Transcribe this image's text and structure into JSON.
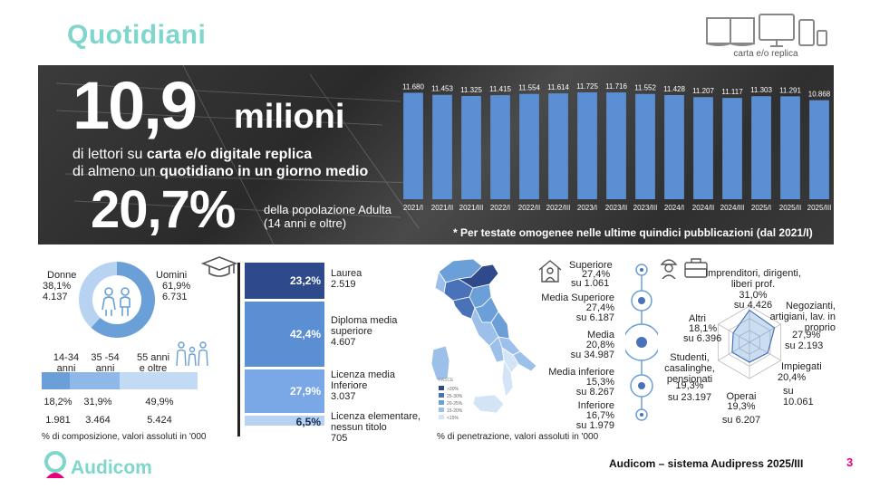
{
  "title": "Quotidiani",
  "devices_label": "carta e/o replica",
  "headline": {
    "number": "10,9",
    "unit": "milioni",
    "line1_a": "di lettori su ",
    "line1_b": "carta e/o digitale replica",
    "line2_a": "di almeno un ",
    "line2_b": "quotidiano in un giorno medio",
    "pct": "20,7%",
    "pct_text1": "della popolazione Adulta",
    "pct_text2": "(14 anni e oltre)",
    "footnote": "* Per testate omogenee nelle ultime quindici pubblicazioni (dal 2021/I)"
  },
  "chart_data": [
    {
      "type": "bar",
      "categories": [
        "2021/I",
        "2021/II",
        "2021/III",
        "2022/I",
        "2022/II",
        "2022/III",
        "2023/I",
        "2023/II",
        "2023/III",
        "2024/I",
        "2024/II",
        "2024/III",
        "2025/I",
        "2025/II",
        "2025/III"
      ],
      "values": [
        11680,
        11453,
        11325,
        11415,
        11554,
        11614,
        11725,
        11716,
        11552,
        11428,
        11207,
        11117,
        11303,
        11291,
        10868
      ],
      "value_labels": [
        "11.680",
        "11.453",
        "11.325",
        "11.415",
        "11.554",
        "11.614",
        "11.725",
        "11.716",
        "11.552",
        "11.428",
        "11.207",
        "11.117",
        "11.303",
        "11.291",
        "10.868"
      ],
      "color": "#5b8fd4"
    },
    {
      "type": "pie",
      "categories": [
        "Donne",
        "Uomini"
      ],
      "values": [
        38.1,
        61.9
      ],
      "colors": [
        "#b8d3f2",
        "#6a9fd8"
      ]
    },
    {
      "type": "bar",
      "categories": [
        "14-34 anni",
        "35 -54 anni",
        "55 anni e oltre"
      ],
      "values": [
        18.2,
        31.9,
        49.9
      ],
      "colors": [
        "#6a9fd8",
        "#8db8e8",
        "#c3daf4"
      ]
    },
    {
      "type": "bar",
      "categories": [
        "Laurea",
        "Diploma media superiore",
        "Licenza media Inferiore",
        "Licenza elementare, nessun titolo"
      ],
      "values": [
        23.2,
        42.4,
        27.9,
        6.5
      ],
      "colors": [
        "#2f4a8a",
        "#5b8fd4",
        "#7aa8e6",
        "#b8d3f2"
      ]
    }
  ],
  "gender": {
    "donne_label": "Donne",
    "donne_pct": "38,1%",
    "donne_abs": "4.137",
    "uomini_label": "Uomini",
    "uomini_pct": "61,9%",
    "uomini_abs": "6.731"
  },
  "age": {
    "labels": [
      "14-34\nanni",
      "35 -54\nanni",
      "55 anni\ne oltre"
    ],
    "pcts": [
      "18,2%",
      "31,9%",
      "49,9%"
    ],
    "abs": [
      "1.981",
      "3.464",
      "5.424"
    ],
    "note": "% di composizione, valori assoluti in '000"
  },
  "education": [
    {
      "pct": "23,2%",
      "name": "Laurea",
      "abs": "2.519"
    },
    {
      "pct": "42,4%",
      "name": "Diploma media superiore",
      "abs": "4.607"
    },
    {
      "pct": "27,9%",
      "name": "Licenza media Inferiore",
      "abs": "3.037"
    },
    {
      "pct": "6,5%",
      "name": "Licenza elementare, nessun titolo",
      "abs": "705"
    }
  ],
  "map": {
    "legend_title": "FASCE",
    "legend": [
      ">30%",
      "25-30%",
      "20-25%",
      "15-20%",
      "<15%"
    ],
    "legend_colors": [
      "#2f4a8a",
      "#4a72b8",
      "#6a9fd8",
      "#9cc0ea",
      "#d3e4f6"
    ],
    "note": "% di penetrazione, valori assoluti in '000"
  },
  "classes": [
    {
      "name": "Superiore",
      "pct": "27,4%",
      "abs": "su 1.061"
    },
    {
      "name": "Media Superiore",
      "pct": "27,4%",
      "abs": "su 6.187"
    },
    {
      "name": "Media",
      "pct": "20,8%",
      "abs": "su 34.987"
    },
    {
      "name": "Media inferiore",
      "pct": "15,3%",
      "abs": "su 8.267"
    },
    {
      "name": "Inferiore",
      "pct": "16,7%",
      "abs": "su 1.979"
    }
  ],
  "professions": [
    {
      "name": "Imprenditori, dirigenti, liberi prof.",
      "pct": "31,0%",
      "abs": "su 4.426"
    },
    {
      "name": "Negozianti, artigiani, lav. in proprio",
      "pct": "27,9%",
      "abs": "su 2.193"
    },
    {
      "name": "Impiegati",
      "pct": "20,4%",
      "abs": "su 10.061"
    },
    {
      "name": "Operai",
      "pct": "19,3%",
      "abs": "su 6.207"
    },
    {
      "name": "Studenti, casalinghe, pensionati",
      "pct": "19,3%",
      "abs": "su 23.197"
    },
    {
      "name": "Altri",
      "pct": "18,1%",
      "abs": "su 6.396"
    }
  ],
  "footer": {
    "logo": "Audicom",
    "source": "Audicom – sistema Audipress 2025/III",
    "page": "3"
  }
}
